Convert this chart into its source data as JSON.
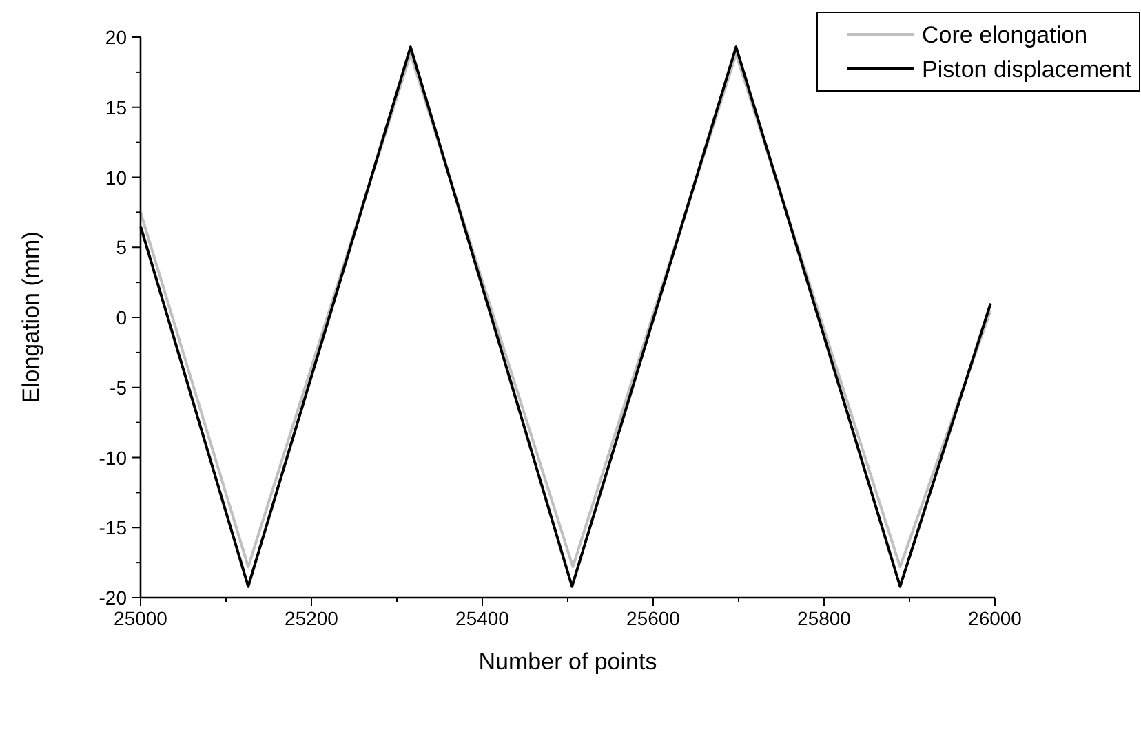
{
  "chart_data": {
    "type": "line",
    "xlabel": "Number of points",
    "ylabel": "Elongation (mm)",
    "xlim": [
      25000,
      26000
    ],
    "xticks": [
      25000,
      25200,
      25400,
      25600,
      25800,
      26000
    ],
    "ylim": [
      -20,
      20
    ],
    "yticks": [
      -20,
      -15,
      -10,
      -5,
      0,
      5,
      10,
      15,
      20
    ],
    "grid": false,
    "legend": "top right",
    "marker": "none",
    "line_style": "solid",
    "series": [
      {
        "name": "Core elongation",
        "color": "#c0c0c0",
        "x": [
          25000,
          25126,
          25316,
          25506,
          25697,
          25889,
          25995
        ],
        "values": [
          7.5,
          -17.8,
          18.8,
          -17.8,
          18.8,
          -17.8,
          0.5
        ]
      },
      {
        "name": "Piston displacement",
        "color": "#000000",
        "x": [
          25000,
          25126,
          25316,
          25505,
          25697,
          25889,
          25995
        ],
        "values": [
          6.5,
          -19.2,
          19.3,
          -19.2,
          19.3,
          -19.2,
          1.0
        ]
      }
    ]
  }
}
